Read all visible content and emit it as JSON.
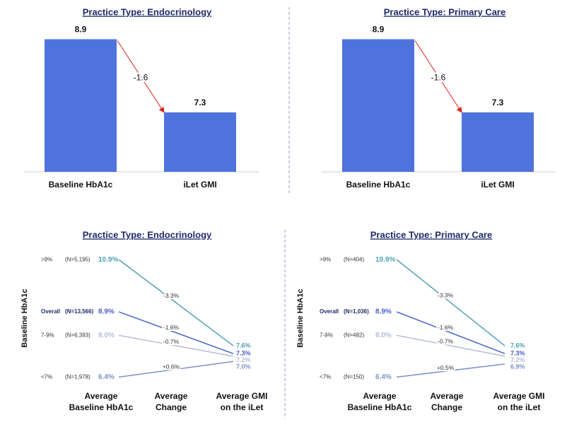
{
  "chart_data": [
    {
      "type": "bar",
      "title": "Practice Type: Endocrinology",
      "categories": [
        "Baseline HbA1c",
        "iLet GMI"
      ],
      "values": [
        8.9,
        7.3
      ],
      "color": "#4e73dc",
      "annotation": "-1.6",
      "arrow_color": "#e0201b",
      "ylim": [
        6,
        9
      ]
    },
    {
      "type": "bar",
      "title": "Practice Type: Primary Care",
      "categories": [
        "Baseline HbA1c",
        "iLet GMI"
      ],
      "values": [
        8.9,
        7.3
      ],
      "color": "#4e73dc",
      "annotation": "-1.6",
      "arrow_color": "#e0201b",
      "ylim": [
        6,
        9
      ]
    },
    {
      "type": "slope",
      "title": "Practice Type: Endocrinology",
      "y_label": "Baseline HbA1c",
      "column_labels": [
        [
          "Average",
          "Baseline HbA1c"
        ],
        [
          "Average",
          "Change"
        ],
        [
          "Average GMI",
          "on the iLet"
        ]
      ],
      "categories": [
        ">9%",
        "Overall",
        "7-9%",
        "<7%"
      ],
      "counts": [
        "(N=5,195)",
        "(N=13,566)",
        "(N=6,393)",
        "(N=1,978)"
      ],
      "bold": [
        false,
        true,
        false,
        false
      ],
      "colors": [
        "#4fa0b5",
        "#4a62c4",
        "#b4bbdc",
        "#7b93c9"
      ],
      "baseline": {
        "values": [
          10.9,
          8.9,
          8.0,
          6.4
        ],
        "value_labels": [
          "10.9%",
          "8.9%",
          "8.0%",
          "6.4%"
        ]
      },
      "change": {
        "values": [
          -3.3,
          -1.6,
          -0.7,
          0.6
        ],
        "value_labels": [
          "-3.3%",
          "-1.6%",
          "-0.7%",
          "+0.6%"
        ]
      },
      "gmi": {
        "values": [
          7.6,
          7.3,
          7.2,
          7.0
        ],
        "value_labels": [
          "7.6%",
          "7.3%",
          "7.2%",
          "7.0%"
        ]
      },
      "ylim": [
        6,
        11.5
      ]
    },
    {
      "type": "slope",
      "title": "Practice Type: Primary Care",
      "y_label": "Baseline HbA1c",
      "column_labels": [
        [
          "Average",
          "Baseline HbA1c"
        ],
        [
          "Average",
          "Change"
        ],
        [
          "Average GMI",
          "on the iLet"
        ]
      ],
      "categories": [
        ">9%",
        "Overall",
        "7-9%",
        "<7%"
      ],
      "counts": [
        "(N=404)",
        "(N=1,036)",
        "(N=482)",
        "(N=150)"
      ],
      "bold": [
        false,
        true,
        false,
        false
      ],
      "colors": [
        "#4fa0b5",
        "#4a62c4",
        "#b4bbdc",
        "#7b93c9"
      ],
      "baseline": {
        "values": [
          10.9,
          8.9,
          8.0,
          6.4
        ],
        "value_labels": [
          "10.9%",
          "8.9%",
          "8.0%",
          "6.4%"
        ]
      },
      "change": {
        "values": [
          -3.3,
          -1.6,
          -0.7,
          0.5
        ],
        "value_labels": [
          "-3.3%",
          "-1.6%",
          "-0.7%",
          "+0.5%"
        ]
      },
      "gmi": {
        "values": [
          7.6,
          7.3,
          7.2,
          6.9
        ],
        "value_labels": [
          "7.6%",
          "7.3%",
          "7.2%",
          "6.9%"
        ]
      },
      "ylim": [
        6,
        11.5
      ]
    }
  ]
}
